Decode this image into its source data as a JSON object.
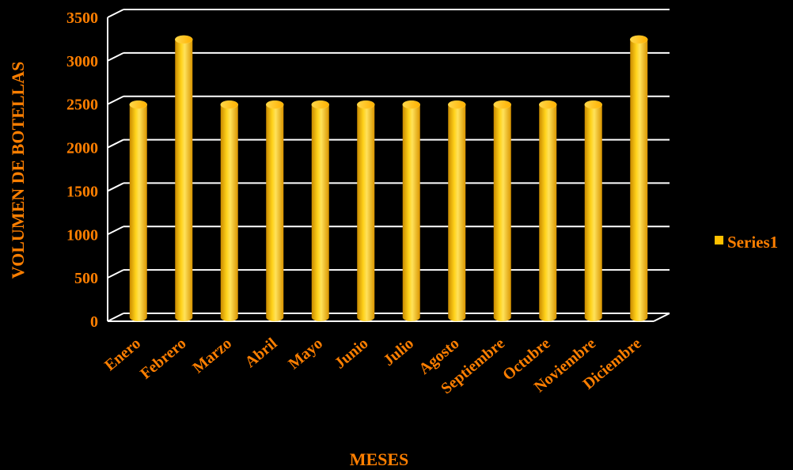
{
  "chart_data": {
    "type": "bar",
    "categories": [
      "Enero",
      "Febrero",
      "Marzo",
      "Abril",
      "Mayo",
      "Junio",
      "Julio",
      "Agosto",
      "Septiembre",
      "Octubre",
      "Noviembre",
      "Diciembre"
    ],
    "series": [
      {
        "name": "Series1",
        "values": [
          2450,
          3200,
          2450,
          2450,
          2450,
          2450,
          2450,
          2450,
          2450,
          2450,
          2450,
          3200
        ]
      }
    ],
    "xlabel": "MESES",
    "ylabel": "VOLUMEN DE BOTELLAS",
    "ylim": [
      0,
      3500
    ],
    "yticks": [
      "0",
      "500",
      "1000",
      "1500",
      "2000",
      "2500",
      "3000",
      "3500"
    ],
    "grid": true,
    "legend_position": "right",
    "colors": {
      "bar": "#ffc000",
      "text": "#ff7f00",
      "grid": "#ffffff",
      "background": "#000000"
    }
  }
}
